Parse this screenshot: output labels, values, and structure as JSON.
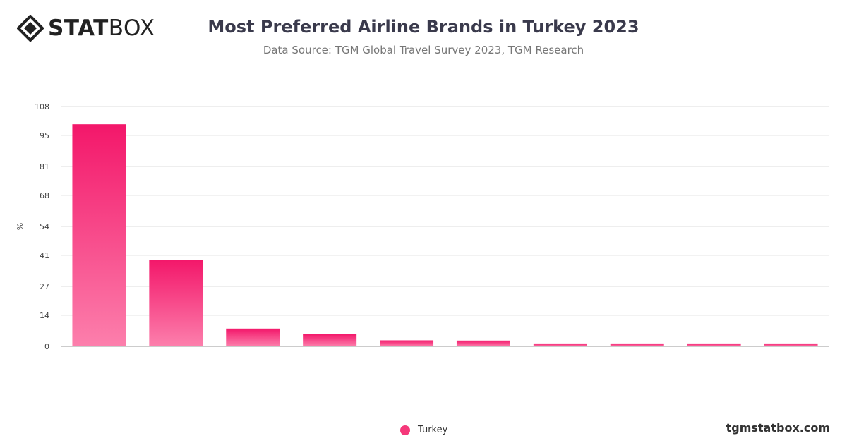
{
  "brand": {
    "logo_bold": "STAT",
    "logo_light": "BOX",
    "icon": "diamond-logo-icon"
  },
  "header": {
    "title": "Most Preferred Airline Brands in Turkey 2023",
    "subtitle": "Data Source: TGM Global Travel Survey 2023, TGM Research"
  },
  "footer": {
    "site": "tgmstatbox.com"
  },
  "colors": {
    "bar_top": "#f3176a",
    "bar_bottom": "#fc7fac",
    "legend": "#f5387a",
    "grid": "#dddddd"
  },
  "chart_data": {
    "type": "bar",
    "title": "Most Preferred Airline Brands in Turkey 2023",
    "ylabel": "%",
    "xlabel": "",
    "ylim": [
      0,
      108
    ],
    "yticks": [
      0,
      14,
      27,
      41,
      54,
      68,
      81,
      95,
      108
    ],
    "categories": [
      "",
      "",
      "",
      "",
      "",
      "",
      "",
      "",
      "",
      ""
    ],
    "series": [
      {
        "name": "Turkey",
        "values": [
          100,
          39,
          8,
          5.5,
          2.7,
          2.6,
          1.3,
          1.3,
          1.3,
          1.3
        ]
      }
    ],
    "grid": true,
    "legend_position": "bottom-center"
  }
}
